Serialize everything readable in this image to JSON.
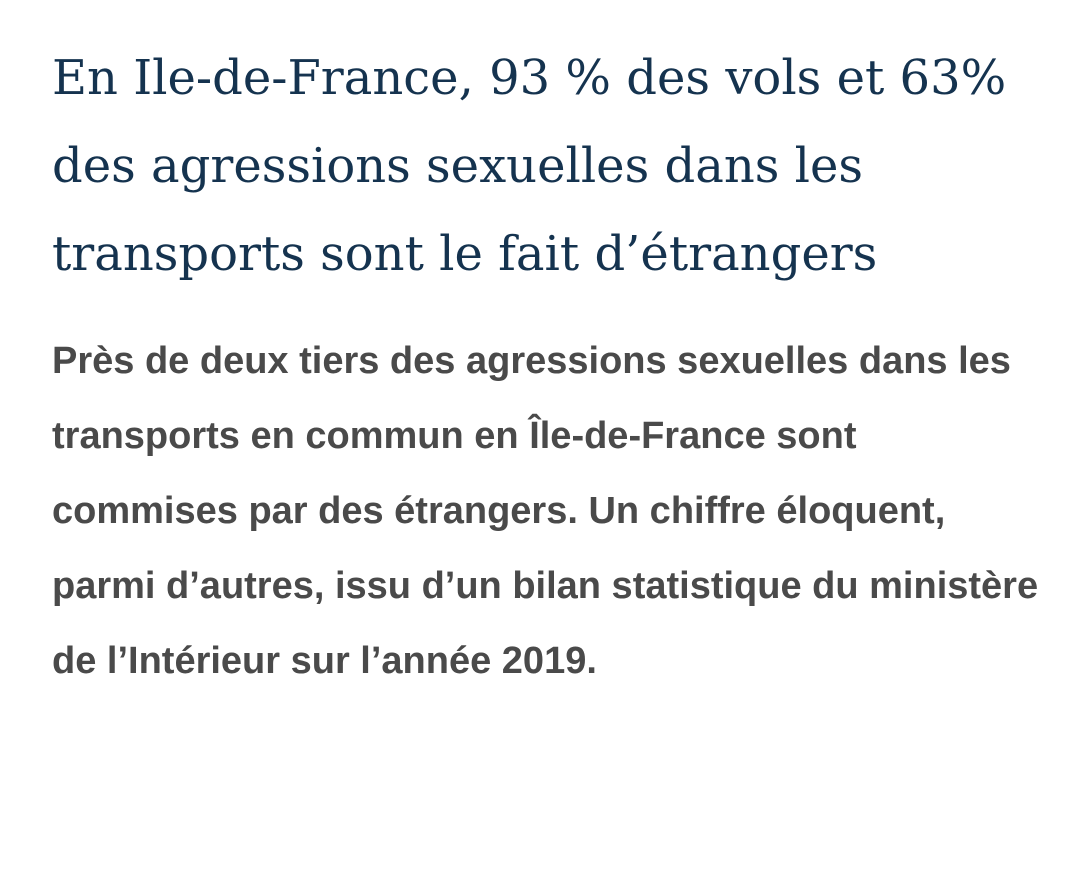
{
  "article": {
    "headline": "En Ile-de-France, 93 % des vols et 63% des agressions sexuelles dans les transports sont le fait d’étrangers",
    "lede": "Près de deux tiers des agressions sexuelles dans les transports en commun en Île-de-France sont commises par des étrangers. Un chiffre éloquent, parmi d’autres, issu d’un bilan statistique du ministère de l’Intérieur sur l’année 2019."
  },
  "colors": {
    "headline": "#15334f",
    "lede": "#4a4a4a",
    "background": "#ffffff"
  }
}
